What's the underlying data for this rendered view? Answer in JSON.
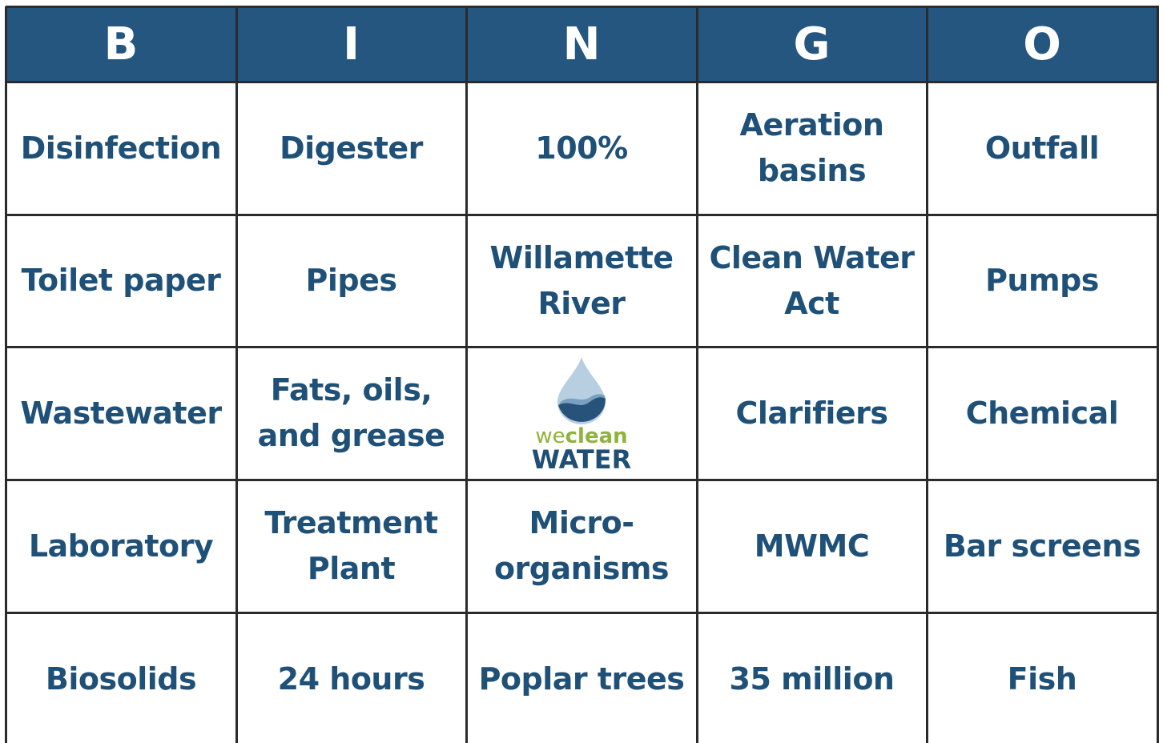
{
  "header": [
    "B",
    "I",
    "N",
    "G",
    "O"
  ],
  "rows": [
    [
      [
        "Disinfection"
      ],
      [
        "Digester"
      ],
      [
        "100%"
      ],
      [
        "Aeration",
        "basins"
      ],
      [
        "Outfall"
      ]
    ],
    [
      [
        "Toilet paper"
      ],
      [
        "Pipes"
      ],
      [
        "Willamette",
        "River"
      ],
      [
        "Clean Water",
        "Act"
      ],
      [
        "Pumps"
      ]
    ],
    [
      [
        "Wastewater"
      ],
      [
        "Fats, oils,",
        "and grease"
      ],
      null,
      [
        "Clarifiers"
      ],
      [
        "Chemical"
      ]
    ],
    [
      [
        "Laboratory"
      ],
      [
        "Treatment",
        "Plant"
      ],
      [
        "Micro-",
        "organisms"
      ],
      [
        "MWMC"
      ],
      [
        "Bar screens"
      ]
    ],
    [
      [
        "Biosolids"
      ],
      [
        "24 hours"
      ],
      [
        "Poplar trees"
      ],
      [
        "35 million"
      ],
      [
        "Fish"
      ]
    ]
  ],
  "logo": {
    "small": [
      "we",
      "clean"
    ],
    "large": "WATER"
  }
}
